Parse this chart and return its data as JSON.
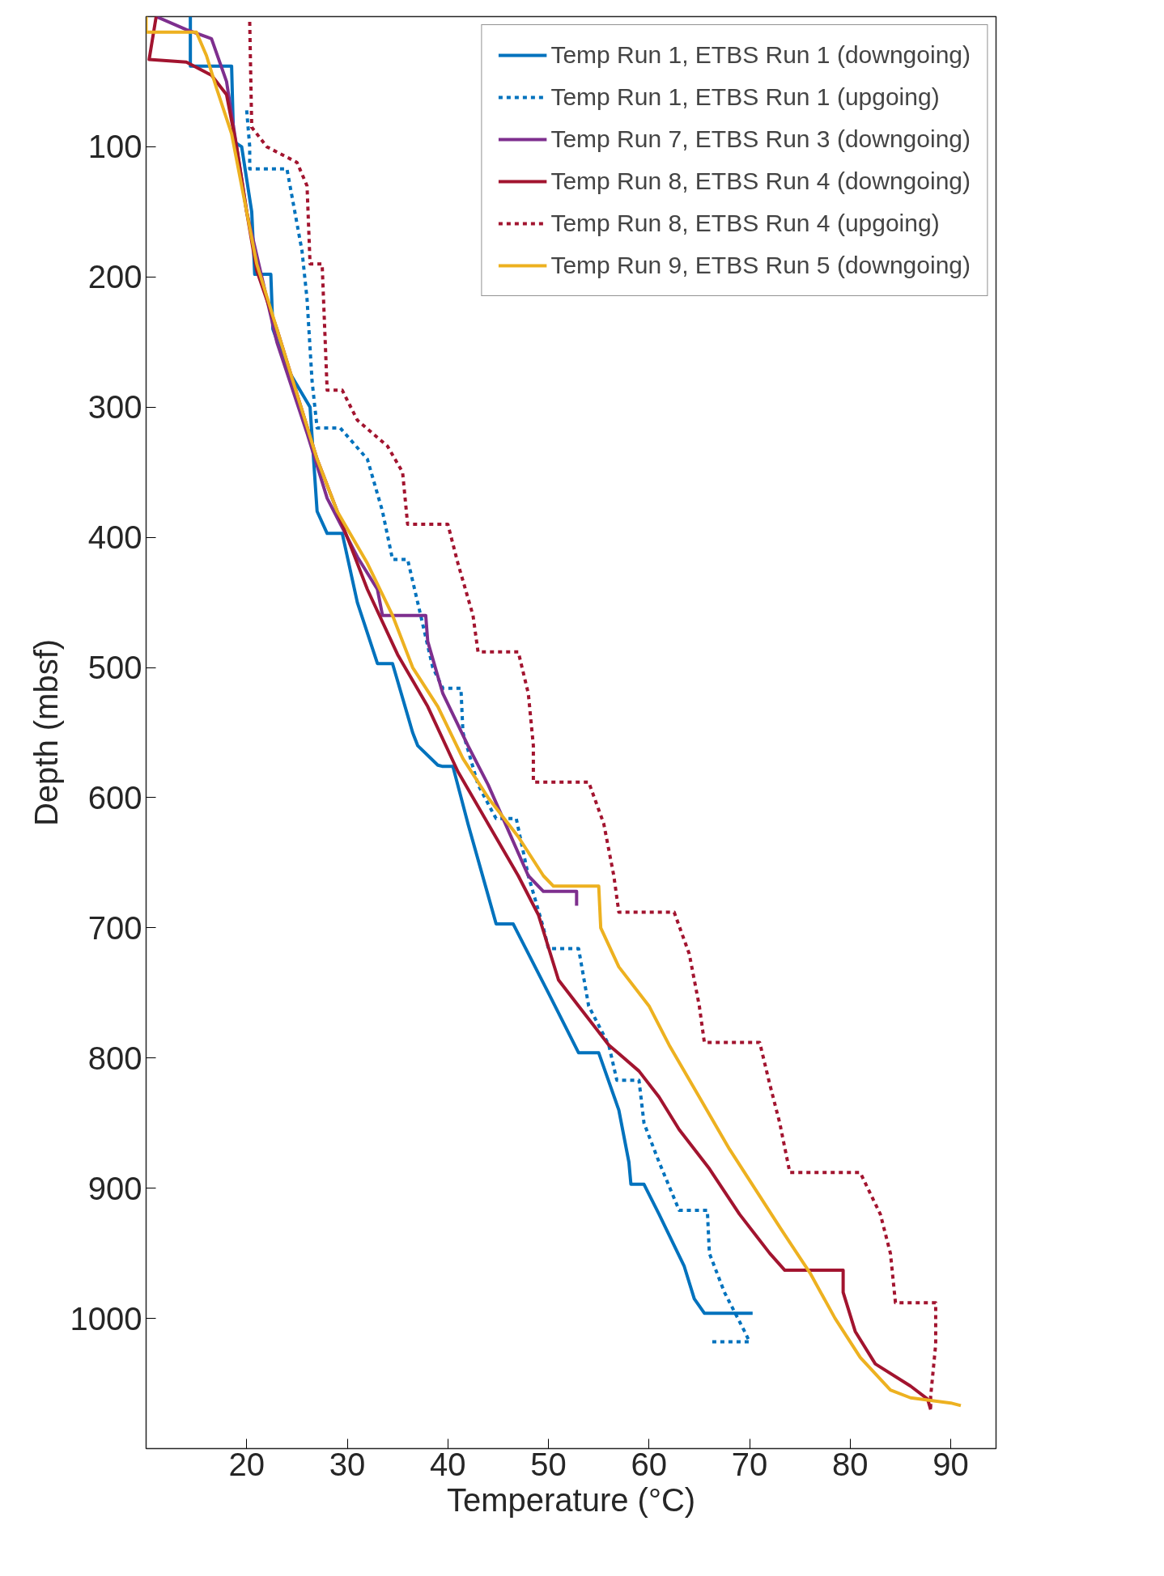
{
  "chart_data": {
    "type": "line",
    "xlabel": "Temperature (°C)",
    "ylabel": "Depth (mbsf)",
    "xlim": [
      10,
      94.5
    ],
    "ylim": [
      1100,
      0
    ],
    "xticks": [
      20,
      30,
      40,
      50,
      60,
      70,
      80,
      90
    ],
    "yticks": [
      100,
      200,
      300,
      400,
      500,
      600,
      700,
      800,
      900,
      1000
    ],
    "grid": false,
    "legend": "top right",
    "line_style": "solid",
    "marker": "none",
    "series": [
      {
        "name": "Temp Run 1, ETBS Run 1 (downgoing)",
        "color": "#0072bd",
        "x": [
          14.4,
          14.4,
          18.5,
          18.7,
          19.5,
          20.5,
          20.8,
          22.4,
          22.6,
          24,
          26.3,
          27,
          28,
          29.5,
          31,
          33,
          34.5,
          36.5,
          37,
          39,
          39.5,
          40.5,
          42,
          44,
          44.8,
          46.5,
          50,
          53,
          55,
          57,
          58,
          58.2,
          59.5,
          61,
          63.5,
          64.5,
          65.5,
          70.3
        ],
        "values": [
          0,
          38,
          38,
          96,
          100,
          150,
          198,
          198,
          240,
          270,
          300,
          380,
          397,
          397,
          450,
          497,
          497,
          550,
          560,
          575,
          576,
          576,
          620,
          675,
          697,
          697,
          750,
          796,
          796,
          840,
          880,
          897,
          897,
          920,
          960,
          985,
          996,
          996
        ]
      },
      {
        "name": "Temp Run 1, ETBS Run 1 (upgoing)",
        "color": "#0072bd",
        "line_style": "dotted",
        "x": [
          20,
          20.3,
          20.3,
          24,
          25.5,
          26,
          26.5,
          27,
          29.3,
          32,
          33.5,
          34.5,
          36,
          37,
          38.5,
          39.5,
          41.3,
          41.5,
          43,
          44.5,
          44.8,
          46.8,
          48,
          49.5,
          50,
          53,
          54,
          56,
          56.8,
          59,
          59.5,
          61,
          63,
          65.8,
          66,
          67.5,
          69.5,
          70,
          66
        ],
        "values": [
          72,
          100,
          117,
          117,
          180,
          217,
          280,
          316,
          316,
          340,
          380,
          417,
          417,
          450,
          500,
          516,
          516,
          550,
          590,
          612,
          616,
          616,
          660,
          700,
          716,
          716,
          760,
          790,
          817,
          817,
          850,
          880,
          917,
          917,
          950,
          980,
          1010,
          1018,
          1018
        ]
      },
      {
        "name": "Temp Run 7, ETBS Run 3 (downgoing)",
        "color": "#7e2f8e",
        "x": [
          11,
          14,
          16.5,
          18,
          20,
          23,
          26,
          28,
          31,
          33,
          33.5,
          37.8,
          38,
          39.5,
          42,
          44,
          46,
          48,
          49.5,
          52.8,
          52.8
        ],
        "values": [
          0,
          10,
          17,
          50,
          150,
          250,
          320,
          370,
          415,
          440,
          460,
          460,
          480,
          520,
          560,
          590,
          625,
          660,
          672,
          672,
          683
        ]
      },
      {
        "name": "Temp Run 8, ETBS Run 4 (downgoing)",
        "color": "#a2142f",
        "x": [
          11,
          10.3,
          14,
          16.5,
          18,
          19,
          20,
          21,
          23,
          25,
          27,
          30,
          32,
          35,
          38,
          41,
          44,
          47,
          49,
          51,
          53,
          56,
          59,
          61,
          63,
          66,
          69,
          72,
          73.5,
          79.3,
          79.3,
          80.5,
          82.5,
          86,
          87.7,
          88
        ],
        "values": [
          0,
          33,
          35,
          45,
          60,
          100,
          150,
          195,
          240,
          290,
          340,
          400,
          440,
          490,
          530,
          580,
          620,
          660,
          690,
          740,
          760,
          790,
          810,
          830,
          855,
          885,
          920,
          950,
          963,
          963,
          980,
          1010,
          1035,
          1052,
          1062,
          1070
        ]
      },
      {
        "name": "Temp Run 8, ETBS Run 4 (upgoing)",
        "color": "#a2142f",
        "line_style": "dotted",
        "x": [
          20.3,
          20.5,
          22,
          25,
          26,
          26.3,
          27.5,
          28,
          29.5,
          31,
          34,
          35.5,
          36,
          40,
          41,
          42.5,
          43,
          47,
          48,
          48.5,
          48.5,
          54,
          55.5,
          56.5,
          57,
          62.5,
          64,
          65,
          65.5,
          71,
          72,
          73,
          74,
          81,
          83,
          84,
          84.5,
          88.5,
          88.5,
          88,
          88
        ],
        "values": [
          4,
          85,
          100,
          112,
          130,
          190,
          190,
          287,
          287,
          310,
          330,
          350,
          390,
          390,
          420,
          460,
          488,
          488,
          520,
          560,
          588,
          588,
          620,
          660,
          688,
          688,
          720,
          760,
          788,
          788,
          820,
          850,
          888,
          888,
          920,
          950,
          988,
          988,
          1020,
          1060,
          1070
        ]
      },
      {
        "name": "Temp Run 9, ETBS Run 5 (downgoing)",
        "color": "#edb120",
        "x": [
          10,
          10,
          15,
          16,
          17,
          18.5,
          20,
          21,
          23,
          25,
          27,
          29,
          32,
          34.5,
          36.5,
          39,
          41.5,
          44,
          47,
          49.5,
          50.5,
          55,
          55.2,
          57,
          60,
          62,
          65,
          68,
          70.5,
          73,
          76,
          78.5,
          81,
          84,
          86,
          90,
          91
        ],
        "values": [
          0,
          12,
          12,
          30,
          55,
          90,
          150,
          190,
          240,
          290,
          340,
          380,
          420,
          460,
          500,
          530,
          570,
          600,
          630,
          660,
          668,
          668,
          700,
          730,
          760,
          790,
          830,
          870,
          900,
          930,
          965,
          1000,
          1030,
          1055,
          1061,
          1065,
          1067
        ]
      }
    ]
  }
}
